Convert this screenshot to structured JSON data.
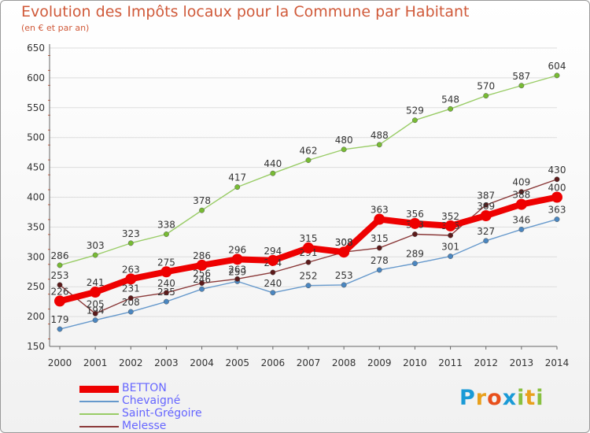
{
  "title": "Evolution des Impôts locaux pour la Commune par Habitant",
  "subtitle": "(en € et par an)",
  "logo": {
    "letters": [
      "P",
      "r",
      "o",
      "x",
      "i",
      "t",
      "i"
    ],
    "colors": [
      "#1a9ad6",
      "#e8a01c",
      "#e8501c",
      "#1a9ad6",
      "#88c040",
      "#e8a01c",
      "#88c040"
    ]
  },
  "chart_data": {
    "type": "line",
    "title": "Evolution des Impôts locaux pour la Commune par Habitant",
    "xlabel": "",
    "ylabel": "",
    "ylim": [
      150,
      650
    ],
    "yticks": [
      150,
      200,
      250,
      300,
      350,
      400,
      450,
      500,
      550,
      600,
      650
    ],
    "x": [
      "2000",
      "2001",
      "2002",
      "2003",
      "2004",
      "2005",
      "2006",
      "2007",
      "2008",
      "2009",
      "2010",
      "2011",
      "2012",
      "2013",
      "2014"
    ],
    "series": [
      {
        "name": "Saint-Grégoire",
        "color": "#99cc66",
        "point_color": "#77bb33",
        "values": [
          286,
          303,
          323,
          338,
          378,
          417,
          440,
          462,
          480,
          488,
          529,
          548,
          570,
          587,
          604
        ],
        "labels": [
          "286",
          "303",
          "323",
          "338",
          "378",
          "417",
          "440",
          "462",
          "480",
          "488",
          "529",
          "548",
          "570",
          "587",
          "604"
        ]
      },
      {
        "name": "Chevaigné",
        "color": "#6699cc",
        "point_color": "#4a86c0",
        "values": [
          179,
          194,
          208,
          225,
          246,
          259,
          240,
          252,
          253,
          278,
          289,
          301,
          327,
          346,
          363
        ],
        "labels": [
          "179",
          "194",
          "208",
          "225",
          "246",
          "259",
          "240",
          "252",
          "253",
          "278",
          "289",
          "301",
          "327",
          "346",
          "363"
        ]
      },
      {
        "name": "Melesse",
        "color": "#8b3a3a",
        "point_color": "#5c1a1a",
        "values": [
          253,
          205,
          231,
          240,
          256,
          263,
          274,
          291,
          308,
          315,
          338,
          336,
          387,
          409,
          430
        ],
        "labels": [
          "253",
          "205",
          "231",
          "240",
          "256",
          "263",
          "274",
          "291",
          "308",
          "315",
          "338",
          "336",
          "387",
          "409",
          "430"
        ]
      },
      {
        "name": "BETTON",
        "color": "#ee0000",
        "point_color": "#ee0000",
        "values": [
          226,
          241,
          263,
          275,
          286,
          296,
          294,
          315,
          308,
          363,
          356,
          352,
          369,
          388,
          400
        ],
        "labels": [
          "226",
          "241",
          "263",
          "275",
          "286",
          "296",
          "294",
          "315",
          "308",
          "363",
          "356",
          "352",
          "369",
          "388",
          "400"
        ]
      }
    ],
    "legend": [
      {
        "name": "BETTON",
        "color": "#ee0000",
        "text_color": "#6666ff",
        "thick": true
      },
      {
        "name": "Chevaigné",
        "color": "#6699cc",
        "text_color": "#6666ff",
        "thick": false
      },
      {
        "name": "Saint-Grégoire",
        "color": "#99cc66",
        "text_color": "#6666ff",
        "thick": false
      },
      {
        "name": "Melesse",
        "color": "#8b3a3a",
        "text_color": "#6666ff",
        "thick": false
      }
    ],
    "legend_position": "bottom-left"
  }
}
